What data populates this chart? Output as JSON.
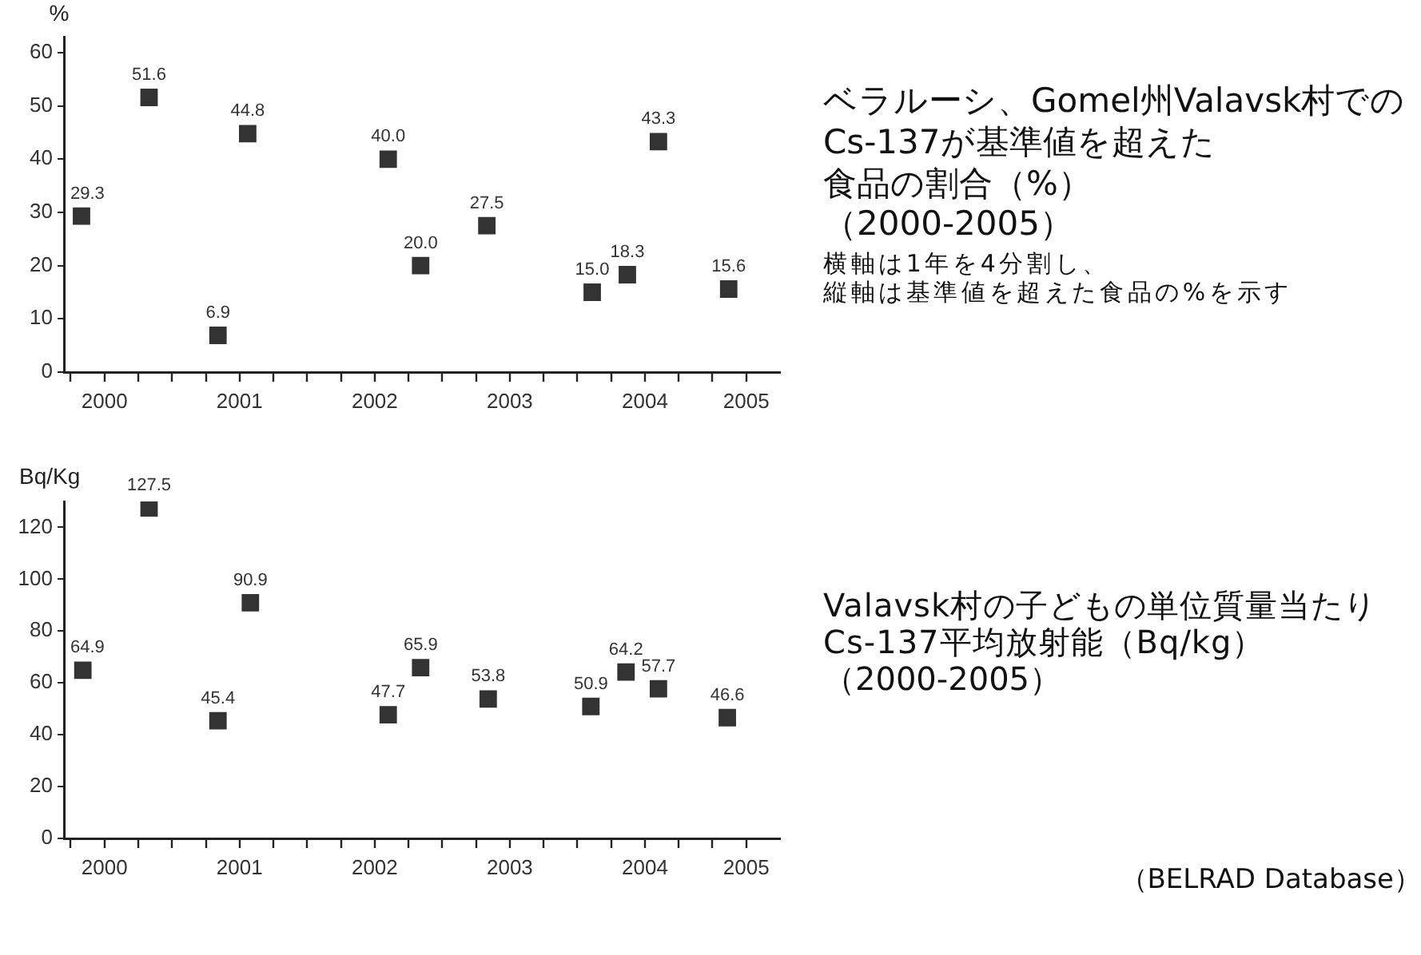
{
  "chart_data": [
    {
      "type": "scatter",
      "ylabel": "%",
      "annotations": [
        "ベラルーシ、Gomel州Valavsk村でのCs-137が基準値を超えた食品の割合（%）",
        "（2000-2005）",
        "横軸は1年を4分割し、縦軸は基準値を超えた食品の%を示す"
      ],
      "x": [
        2000.33,
        2000.83,
        2001.34,
        2001.56,
        2002.6,
        2002.84,
        2003.33,
        2004.11,
        2004.37,
        2004.6,
        2005.12
      ],
      "values": [
        29.3,
        51.6,
        6.9,
        44.8,
        40.0,
        20.0,
        27.5,
        15.0,
        18.3,
        43.3,
        15.6
      ],
      "value_labels": [
        "29.3",
        "51.6",
        "6.9",
        "44.8",
        "40.0",
        "20.0",
        "27.5",
        "15.0",
        "18.3",
        "43.3",
        "15.6"
      ],
      "color": "#333333",
      "marker": "square",
      "xlim": [
        2000.2,
        2005.5
      ],
      "ylim": [
        0,
        63
      ],
      "yticks": [
        0,
        10,
        20,
        30,
        40,
        50,
        60
      ],
      "xticks": [
        {
          "value": 2000.25,
          "label": null
        },
        {
          "value": 2000.5,
          "label": "2000"
        },
        {
          "value": 2000.75,
          "label": null
        },
        {
          "value": 2001,
          "label": null
        },
        {
          "value": 2001.25,
          "label": null
        },
        {
          "value": 2001.5,
          "label": "2001"
        },
        {
          "value": 2001.75,
          "label": null
        },
        {
          "value": 2002,
          "label": null
        },
        {
          "value": 2002.25,
          "label": null
        },
        {
          "value": 2002.5,
          "label": "2002"
        },
        {
          "value": 2002.75,
          "label": null
        },
        {
          "value": 2003,
          "label": null
        },
        {
          "value": 2003.25,
          "label": null
        },
        {
          "value": 2003.5,
          "label": "2003"
        },
        {
          "value": 2003.75,
          "label": null
        },
        {
          "value": 2004,
          "label": null
        },
        {
          "value": 2004.25,
          "label": null
        },
        {
          "value": 2004.5,
          "label": "2004"
        },
        {
          "value": 2004.75,
          "label": null
        },
        {
          "value": 2005,
          "label": null
        },
        {
          "value": 2005.25,
          "label": "2005"
        }
      ]
    },
    {
      "type": "scatter",
      "ylabel": "Bq/Kg",
      "annotations": [
        "Valavsk村の子どもの単位質量当たりCs-137平均放射能（Bq/kg）",
        "（2000-2005）",
        "（BELRAD Database）"
      ],
      "x": [
        2000.34,
        2000.83,
        2001.34,
        2001.58,
        2002.6,
        2002.84,
        2003.34,
        2004.1,
        2004.36,
        2004.6,
        2005.11
      ],
      "values": [
        64.9,
        127.5,
        45.4,
        90.9,
        47.7,
        65.9,
        53.8,
        50.9,
        64.2,
        57.7,
        46.6
      ],
      "value_labels": [
        "64.9",
        "127.5",
        "45.4",
        "90.9",
        "47.7",
        "65.9",
        "53.8",
        "50.9",
        "64.2",
        "57.7",
        "46.6"
      ],
      "color": "#333333",
      "marker": "square",
      "xlim": [
        2000.2,
        2005.5
      ],
      "ylim": [
        0,
        130
      ],
      "yticks": [
        0,
        20,
        40,
        60,
        80,
        100,
        120
      ],
      "xticks": [
        {
          "value": 2000.25,
          "label": null
        },
        {
          "value": 2000.5,
          "label": "2000"
        },
        {
          "value": 2000.75,
          "label": null
        },
        {
          "value": 2001,
          "label": null
        },
        {
          "value": 2001.25,
          "label": null
        },
        {
          "value": 2001.5,
          "label": "2001"
        },
        {
          "value": 2001.75,
          "label": null
        },
        {
          "value": 2002,
          "label": null
        },
        {
          "value": 2002.25,
          "label": null
        },
        {
          "value": 2002.5,
          "label": "2002"
        },
        {
          "value": 2002.75,
          "label": null
        },
        {
          "value": 2003,
          "label": null
        },
        {
          "value": 2003.25,
          "label": null
        },
        {
          "value": 2003.5,
          "label": "2003"
        },
        {
          "value": 2003.75,
          "label": null
        },
        {
          "value": 2004,
          "label": null
        },
        {
          "value": 2004.25,
          "label": null
        },
        {
          "value": 2004.5,
          "label": "2004"
        },
        {
          "value": 2004.75,
          "label": null
        },
        {
          "value": 2005,
          "label": null
        },
        {
          "value": 2005.25,
          "label": "2005"
        }
      ]
    }
  ]
}
